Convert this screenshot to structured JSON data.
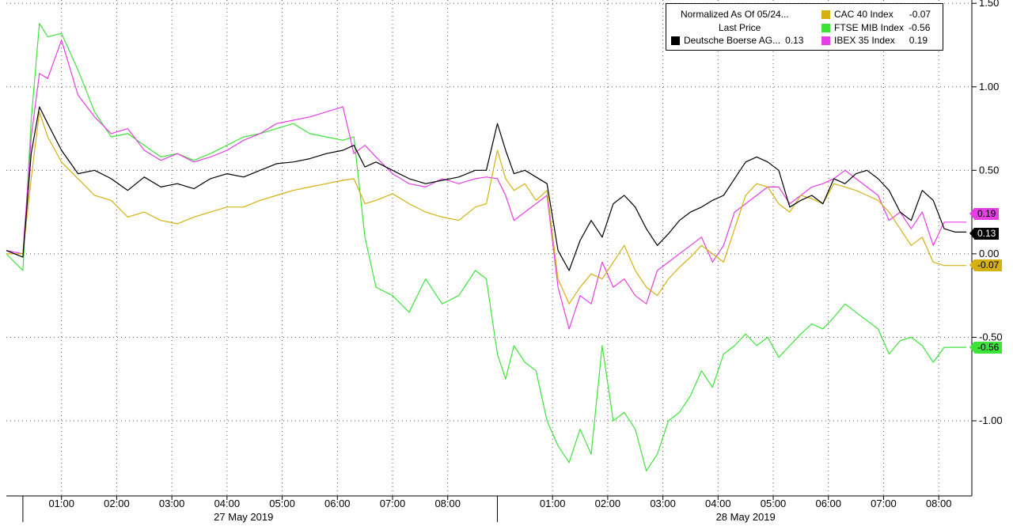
{
  "chart_data": {
    "type": "line",
    "legend": {
      "header_line1": "Normalized As Of 05/24...",
      "header_line2": "Last Price",
      "placement": "top-right"
    },
    "y_axis": {
      "ticks": [
        "1.50",
        "1.00",
        "0.50",
        "0.00",
        "-0.50",
        "-1.00"
      ],
      "tick_values": [
        1.5,
        1.0,
        0.5,
        0.0,
        -0.5,
        -1.0
      ],
      "ylim": [
        -1.45,
        1.52
      ],
      "side": "right"
    },
    "x_axis": {
      "xlim": [
        0,
        17.5
      ],
      "ticks": [
        "01:00",
        "02:00",
        "03:00",
        "04:00",
        "05:00",
        "06:00",
        "07:00",
        "08:00",
        "01:00",
        "02:00",
        "03:00",
        "04:00",
        "05:00",
        "06:00",
        "07:00",
        "08:00"
      ],
      "tick_positions": [
        1.0,
        2.0,
        3.0,
        4.0,
        5.0,
        6.0,
        7.0,
        8.0,
        9.9,
        10.9,
        11.9,
        12.9,
        13.9,
        14.9,
        15.9,
        16.9
      ],
      "date_labels": [
        "27 May 2019",
        "28 May 2019"
      ],
      "date_label_positions": [
        4.3,
        13.4
      ],
      "session_breaks": [
        0.3,
        8.9
      ],
      "unit_note": "x values are hours on the time axis (two sessions)"
    },
    "grid": true,
    "series": [
      {
        "name": "Deutsche Boerse AG...",
        "last": "0.13",
        "color": "#000000",
        "tag_text_color": "#ffffff",
        "x": [
          0,
          0.3,
          0.45,
          0.6,
          0.75,
          1.0,
          1.3,
          1.6,
          1.9,
          2.2,
          2.5,
          2.8,
          3.1,
          3.4,
          3.7,
          4.0,
          4.3,
          4.6,
          4.9,
          5.2,
          5.5,
          5.8,
          6.1,
          6.3,
          6.5,
          6.7,
          7.0,
          7.3,
          7.6,
          7.9,
          8.2,
          8.5,
          8.7,
          8.9,
          9.05,
          9.2,
          9.4,
          9.6,
          9.8,
          10.0,
          10.2,
          10.4,
          10.6,
          10.8,
          11.0,
          11.2,
          11.4,
          11.6,
          11.8,
          12.0,
          12.2,
          12.4,
          12.6,
          12.8,
          13.0,
          13.2,
          13.4,
          13.6,
          13.8,
          14.0,
          14.2,
          14.4,
          14.6,
          14.8,
          15.0,
          15.2,
          15.4,
          15.6,
          15.8,
          16.0,
          16.2,
          16.4,
          16.6,
          16.8,
          17.0,
          17.2,
          17.4
        ],
        "y": [
          0.02,
          -0.02,
          0.6,
          0.88,
          0.78,
          0.62,
          0.48,
          0.5,
          0.45,
          0.38,
          0.46,
          0.4,
          0.42,
          0.39,
          0.45,
          0.48,
          0.46,
          0.5,
          0.54,
          0.55,
          0.57,
          0.6,
          0.62,
          0.65,
          0.52,
          0.55,
          0.5,
          0.45,
          0.42,
          0.44,
          0.46,
          0.5,
          0.5,
          0.78,
          0.62,
          0.48,
          0.5,
          0.46,
          0.42,
          0.02,
          -0.1,
          0.08,
          0.2,
          0.1,
          0.3,
          0.35,
          0.28,
          0.15,
          0.05,
          0.12,
          0.2,
          0.25,
          0.28,
          0.32,
          0.35,
          0.45,
          0.55,
          0.58,
          0.55,
          0.5,
          0.28,
          0.32,
          0.35,
          0.3,
          0.45,
          0.42,
          0.48,
          0.5,
          0.45,
          0.38,
          0.25,
          0.2,
          0.38,
          0.32,
          0.15,
          0.13,
          0.13
        ]
      },
      {
        "name": "CAC 40 Index",
        "last": "-0.07",
        "color": "#d4b012",
        "tag_text_color": "#000000",
        "x": [
          0,
          0.3,
          0.45,
          0.6,
          0.75,
          1.0,
          1.3,
          1.6,
          1.9,
          2.2,
          2.5,
          2.8,
          3.1,
          3.4,
          3.7,
          4.0,
          4.3,
          4.6,
          4.9,
          5.2,
          5.5,
          5.8,
          6.1,
          6.3,
          6.5,
          6.7,
          7.0,
          7.3,
          7.6,
          7.9,
          8.2,
          8.5,
          8.7,
          8.9,
          9.05,
          9.2,
          9.4,
          9.6,
          9.8,
          10.0,
          10.2,
          10.4,
          10.6,
          10.8,
          11.0,
          11.2,
          11.4,
          11.6,
          11.8,
          12.0,
          12.2,
          12.4,
          12.6,
          12.8,
          13.0,
          13.2,
          13.4,
          13.6,
          13.8,
          14.0,
          14.2,
          14.4,
          14.6,
          14.8,
          15.0,
          15.2,
          15.4,
          15.6,
          15.8,
          16.0,
          16.2,
          16.4,
          16.6,
          16.8,
          17.0,
          17.2,
          17.4
        ],
        "y": [
          0.0,
          0.0,
          0.45,
          0.85,
          0.7,
          0.55,
          0.45,
          0.35,
          0.32,
          0.22,
          0.25,
          0.2,
          0.18,
          0.22,
          0.25,
          0.28,
          0.28,
          0.32,
          0.35,
          0.38,
          0.4,
          0.42,
          0.44,
          0.45,
          0.3,
          0.32,
          0.36,
          0.3,
          0.25,
          0.22,
          0.2,
          0.28,
          0.3,
          0.62,
          0.45,
          0.38,
          0.42,
          0.32,
          0.38,
          -0.15,
          -0.3,
          -0.2,
          -0.12,
          -0.15,
          -0.05,
          0.05,
          -0.1,
          -0.2,
          -0.25,
          -0.15,
          -0.08,
          -0.02,
          0.05,
          0.0,
          -0.05,
          0.15,
          0.35,
          0.42,
          0.4,
          0.3,
          0.25,
          0.35,
          0.33,
          0.3,
          0.42,
          0.4,
          0.38,
          0.35,
          0.32,
          0.25,
          0.15,
          0.05,
          0.1,
          -0.05,
          -0.07,
          -0.07,
          -0.07
        ]
      },
      {
        "name": "FTSE MIB Index",
        "last": "-0.56",
        "color": "#3ee33a",
        "tag_text_color": "#000000",
        "x": [
          0,
          0.3,
          0.45,
          0.6,
          0.75,
          1.0,
          1.3,
          1.6,
          1.9,
          2.2,
          2.5,
          2.8,
          3.1,
          3.4,
          3.7,
          4.0,
          4.3,
          4.6,
          4.9,
          5.2,
          5.5,
          5.8,
          6.1,
          6.3,
          6.5,
          6.7,
          7.0,
          7.3,
          7.6,
          7.9,
          8.2,
          8.5,
          8.7,
          8.9,
          9.05,
          9.2,
          9.4,
          9.6,
          9.8,
          10.0,
          10.2,
          10.4,
          10.6,
          10.8,
          11.0,
          11.2,
          11.4,
          11.6,
          11.8,
          12.0,
          12.2,
          12.4,
          12.6,
          12.8,
          13.0,
          13.2,
          13.4,
          13.6,
          13.8,
          14.0,
          14.2,
          14.4,
          14.6,
          14.8,
          15.0,
          15.2,
          15.4,
          15.6,
          15.8,
          16.0,
          16.2,
          16.4,
          16.6,
          16.8,
          17.0,
          17.2,
          17.4
        ],
        "y": [
          0.0,
          -0.1,
          0.8,
          1.38,
          1.3,
          1.32,
          1.1,
          0.85,
          0.7,
          0.72,
          0.65,
          0.58,
          0.6,
          0.56,
          0.6,
          0.65,
          0.7,
          0.72,
          0.75,
          0.78,
          0.72,
          0.7,
          0.68,
          0.7,
          0.1,
          -0.2,
          -0.25,
          -0.35,
          -0.15,
          -0.3,
          -0.25,
          -0.1,
          -0.15,
          -0.6,
          -0.75,
          -0.55,
          -0.65,
          -0.7,
          -1.0,
          -1.15,
          -1.25,
          -1.05,
          -1.2,
          -0.55,
          -1.0,
          -0.95,
          -1.05,
          -1.3,
          -1.2,
          -1.0,
          -0.95,
          -0.85,
          -0.7,
          -0.8,
          -0.6,
          -0.55,
          -0.48,
          -0.55,
          -0.5,
          -0.62,
          -0.55,
          -0.48,
          -0.42,
          -0.45,
          -0.38,
          -0.3,
          -0.35,
          -0.4,
          -0.45,
          -0.6,
          -0.52,
          -0.5,
          -0.55,
          -0.65,
          -0.56,
          -0.56,
          -0.56
        ]
      },
      {
        "name": "IBEX 35 Index",
        "last": "0.19",
        "color": "#e53ee3",
        "tag_text_color": "#000000",
        "x": [
          0,
          0.3,
          0.45,
          0.6,
          0.75,
          1.0,
          1.3,
          1.6,
          1.9,
          2.2,
          2.5,
          2.8,
          3.1,
          3.4,
          3.7,
          4.0,
          4.3,
          4.6,
          4.9,
          5.2,
          5.5,
          5.8,
          6.1,
          6.3,
          6.5,
          6.7,
          7.0,
          7.3,
          7.6,
          7.9,
          8.2,
          8.5,
          8.7,
          8.9,
          9.05,
          9.2,
          9.4,
          9.6,
          9.8,
          10.0,
          10.2,
          10.4,
          10.6,
          10.8,
          11.0,
          11.2,
          11.4,
          11.6,
          11.8,
          12.0,
          12.2,
          12.4,
          12.6,
          12.8,
          13.0,
          13.2,
          13.4,
          13.6,
          13.8,
          14.0,
          14.2,
          14.4,
          14.6,
          14.8,
          15.0,
          15.2,
          15.4,
          15.6,
          15.8,
          16.0,
          16.2,
          16.4,
          16.6,
          16.8,
          17.0,
          17.2,
          17.4
        ],
        "y": [
          0.02,
          0.0,
          0.7,
          1.08,
          1.05,
          1.28,
          0.95,
          0.82,
          0.72,
          0.75,
          0.62,
          0.56,
          0.6,
          0.55,
          0.58,
          0.62,
          0.68,
          0.72,
          0.78,
          0.8,
          0.82,
          0.85,
          0.88,
          0.6,
          0.65,
          0.58,
          0.48,
          0.42,
          0.4,
          0.45,
          0.42,
          0.45,
          0.46,
          0.45,
          0.35,
          0.2,
          0.25,
          0.3,
          0.35,
          -0.2,
          -0.45,
          -0.25,
          -0.3,
          -0.05,
          -0.2,
          -0.15,
          -0.25,
          -0.3,
          -0.1,
          -0.05,
          0.0,
          0.05,
          0.1,
          -0.05,
          0.05,
          0.25,
          0.3,
          0.35,
          0.4,
          0.4,
          0.3,
          0.35,
          0.4,
          0.42,
          0.45,
          0.5,
          0.45,
          0.4,
          0.35,
          0.2,
          0.25,
          0.15,
          0.25,
          0.05,
          0.19,
          0.19,
          0.19
        ]
      }
    ]
  }
}
